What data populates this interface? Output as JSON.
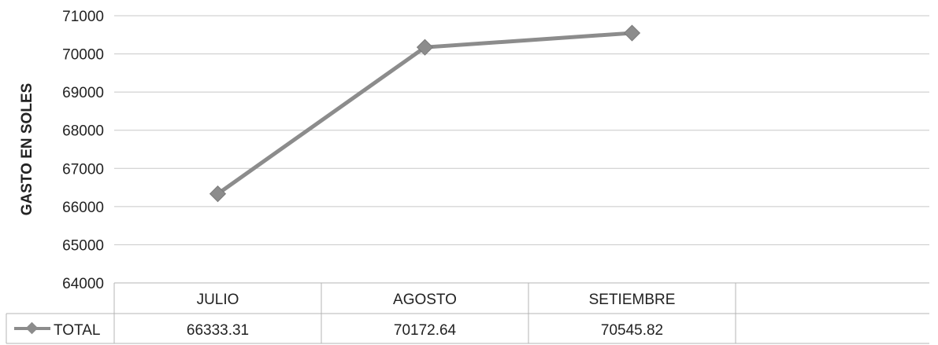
{
  "chart_data": {
    "type": "line",
    "categories": [
      "JULIO",
      "AGOSTO",
      "SETIEMBRE"
    ],
    "series": [
      {
        "name": "TOTAL",
        "values": [
          66333.31,
          70172.64,
          70545.82
        ],
        "color": "#8c8c8c"
      }
    ],
    "ylabel": "GASTO EN SOLES",
    "xlabel": "",
    "title": "",
    "ylim": [
      64000,
      71000
    ],
    "yticks": [
      64000,
      65000,
      66000,
      67000,
      68000,
      69000,
      70000,
      71000
    ],
    "grid": true,
    "legend": "data-table",
    "value_labels": [
      "66333.31",
      "70172.64",
      "70545.82"
    ]
  }
}
